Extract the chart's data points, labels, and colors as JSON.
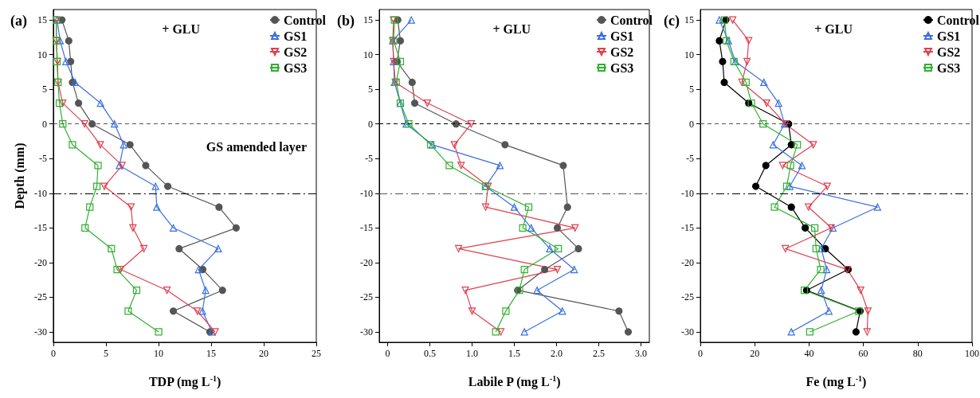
{
  "chart_data": [
    {
      "type": "line",
      "title": "(a)",
      "xlabel": "TDP (mg L$^{-1}$)",
      "ylabel": "Depth (mm)",
      "orientation": "horizontal",
      "annotations": [
        "+ GLU",
        "GS amended layer"
      ],
      "x": [
        15,
        12,
        9,
        6,
        3,
        0,
        -3,
        -6,
        -9,
        -12,
        -15,
        -18,
        -21,
        -24,
        -27,
        -30
      ],
      "series": [
        {
          "name": "Control",
          "color": "#555555",
          "marker": "circle",
          "values": [
            0.82,
            1.47,
            1.65,
            1.82,
            2.4,
            3.69,
            7.29,
            8.79,
            10.88,
            15.75,
            17.38,
            11.96,
            14.21,
            16.08,
            11.41,
            14.88
          ]
        },
        {
          "name": "GS1",
          "color": "#3b6fe0",
          "marker": "triangle",
          "values": [
            0.35,
            0.65,
            1.2,
            2.07,
            4.49,
            5.82,
            6.69,
            6.29,
            9.72,
            9.84,
            11.41,
            15.68,
            13.81,
            14.48,
            14.18,
            15.08
          ]
        },
        {
          "name": "GS2",
          "color": "#e0404f",
          "marker": "triangle-down",
          "values": [
            0.28,
            0.28,
            0.4,
            0.45,
            0.9,
            2.97,
            4.47,
            6.54,
            4.85,
            7.39,
            7.57,
            8.61,
            6.39,
            10.81,
            13.69,
            15.38
          ]
        },
        {
          "name": "GS3",
          "color": "#30b030",
          "marker": "square",
          "values": [
            0.28,
            0.3,
            0.35,
            0.45,
            0.58,
            0.9,
            1.82,
            4.25,
            4.14,
            3.47,
            3.02,
            5.52,
            6.07,
            7.92,
            7.12,
            10.01
          ]
        }
      ],
      "xlim": [
        0,
        25
      ],
      "xticks": [
        0,
        5,
        10,
        15,
        20,
        25
      ],
      "ylim": [
        -31.5,
        16.5
      ],
      "yticks": [
        15,
        10,
        5,
        0,
        -5,
        -10,
        -15,
        -20,
        -25,
        -30
      ],
      "ref_lines": [
        {
          "axis": "y",
          "value": 0,
          "color": "#555555",
          "line_style": "dashed"
        },
        {
          "axis": "y",
          "value": -10,
          "color": "#000000",
          "line_style": "dashdot"
        }
      ],
      "grid": false,
      "legend": "top right"
    },
    {
      "type": "line",
      "title": "(b)",
      "xlabel": "Labile P (mg L$^{-1}$)",
      "orientation": "horizontal",
      "annotations": [
        "+ GLU"
      ],
      "x": [
        15,
        12,
        9,
        6,
        3,
        0,
        -3,
        -6,
        -9,
        -12,
        -15,
        -18,
        -21,
        -24,
        -27,
        -30
      ],
      "series": [
        {
          "name": "Control",
          "color": "#555555",
          "marker": "circle",
          "values": [
            0.12,
            0.15,
            0.11,
            0.29,
            0.32,
            0.81,
            1.39,
            2.08,
            null,
            2.13,
            2.01,
            2.26,
            1.86,
            1.54,
            2.74,
            2.85
          ]
        },
        {
          "name": "GS1",
          "color": "#3b6fe0",
          "marker": "triangle",
          "values": [
            0.28,
            0.06,
            0.07,
            0.08,
            0.15,
            0.22,
            0.53,
            1.33,
            1.16,
            1.5,
            1.7,
            1.92,
            2.21,
            1.77,
            2.07,
            1.62
          ]
        },
        {
          "name": "GS2",
          "color": "#e0404f",
          "marker": "triangle-down",
          "values": [
            0.07,
            0.06,
            0.07,
            0.09,
            0.47,
            0.99,
            0.79,
            0.87,
            1.19,
            1.16,
            2.22,
            0.84,
            2.01,
            0.92,
            1.0,
            1.34
          ]
        },
        {
          "name": "GS3",
          "color": "#30b030",
          "marker": "square",
          "values": [
            0.08,
            0.07,
            0.15,
            0.1,
            0.15,
            0.25,
            0.51,
            0.73,
            1.16,
            1.67,
            1.6,
            2.02,
            1.62,
            1.56,
            1.4,
            1.28
          ]
        }
      ],
      "xlim": [
        -0.1,
        3.1
      ],
      "xticks": [
        {
          "value": 0,
          "label": "0"
        },
        0.5,
        {
          "value": 1,
          "label": "1.0"
        },
        1.5,
        {
          "value": 2,
          "label": "2.0"
        },
        2.5,
        {
          "value": 3,
          "label": "3.0"
        }
      ],
      "ylim": [
        -31.5,
        16.5
      ],
      "yticks": [
        15,
        10,
        5,
        0,
        -5,
        -10,
        -15,
        -20,
        -25,
        -30
      ],
      "ref_lines": [
        {
          "axis": "y",
          "value": 0,
          "color": "#000000",
          "line_style": "dashed"
        },
        {
          "axis": "y",
          "value": -10,
          "color": "#555555",
          "line_style": "dashdot"
        }
      ],
      "grid": false,
      "legend": "top right"
    },
    {
      "type": "line",
      "title": "(c)",
      "xlabel": "Fe (mg L$^{-1}$)",
      "orientation": "horizontal",
      "annotations": [
        "+ GLU"
      ],
      "x": [
        15,
        12,
        9,
        6,
        3,
        0,
        -3,
        -6,
        -9,
        -12,
        -15,
        -18,
        -21,
        -24,
        -27,
        -30
      ],
      "series": [
        {
          "name": "Control",
          "color": "#000000",
          "marker": "circle",
          "values": [
            9.4,
            7.0,
            8.2,
            8.8,
            17.8,
            32.5,
            33.5,
            24.1,
            20.4,
            33.5,
            38.6,
            46.0,
            54.4,
            39.1,
            58.8,
            57.3
          ]
        },
        {
          "name": "GS1",
          "color": "#3b6fe0",
          "marker": "triangle",
          "values": [
            7.0,
            10.3,
            12.9,
            23.4,
            28.8,
            31.0,
            26.8,
            37.4,
            32.9,
            65.2,
            48.8,
            44.5,
            46.5,
            44.5,
            47.3,
            33.5
          ]
        },
        {
          "name": "GS2",
          "color": "#e0404f",
          "marker": "triangle-down",
          "values": [
            11.9,
            17.8,
            17.2,
            15.3,
            24.4,
            31.3,
            41.6,
            30.3,
            46.7,
            39.8,
            48.2,
            31.3,
            54.1,
            59.0,
            61.7,
            61.4
          ]
        },
        {
          "name": "GS3",
          "color": "#30b030",
          "marker": "square",
          "values": [
            8.9,
            9.6,
            12.4,
            16.8,
            18.8,
            23.1,
            35.7,
            33.2,
            31.8,
            27.3,
            42.1,
            42.6,
            44.3,
            38.3,
            58.3,
            40.3
          ]
        }
      ],
      "xlim": [
        0,
        100
      ],
      "xticks": [
        0,
        20,
        40,
        60,
        80,
        100
      ],
      "ylim": [
        -31.5,
        16.5
      ],
      "yticks": [
        15,
        10,
        5,
        0,
        -5,
        -10,
        -15,
        -20,
        -25,
        -30
      ],
      "ref_lines": [
        {
          "axis": "y",
          "value": 0,
          "color": "#555555",
          "line_style": "dashed"
        },
        {
          "axis": "y",
          "value": -10,
          "color": "#000000",
          "line_style": "dashdot"
        }
      ],
      "grid": false,
      "legend": "top right"
    }
  ]
}
